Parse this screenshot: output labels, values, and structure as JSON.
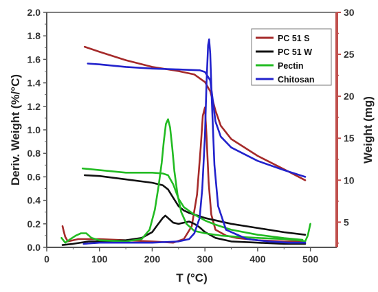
{
  "chart_data": {
    "type": "line",
    "xlabel": "T (°C)",
    "ylabel_left": "Deriv. Weight (%/°C)",
    "ylabel_right": "Weight (mg)",
    "xlim": [
      0,
      550
    ],
    "ylim_left": [
      0.0,
      2.0
    ],
    "ylim_right": [
      2,
      30
    ],
    "x_ticks": [
      0,
      100,
      200,
      300,
      400,
      500
    ],
    "y_left_ticks": [
      0.0,
      0.2,
      0.4,
      0.6,
      0.8,
      1.0,
      1.2,
      1.4,
      1.6,
      1.8,
      2.0
    ],
    "y_left_tick_labels": [
      "0.0",
      "0.2",
      "0.4",
      "0.6",
      "0.8",
      "1.0",
      "1.2",
      "1.4",
      "1.6",
      "1.8",
      "2.0"
    ],
    "y_right_ticks": [
      5,
      10,
      15,
      20,
      25,
      30
    ],
    "y_right_tick_labels": [
      "5",
      "10",
      "15",
      "20",
      "25",
      "30"
    ],
    "right_axis_color": "#c0504d",
    "legend_position": "top-right",
    "grid": false,
    "series": [
      {
        "name": "PC 51 S",
        "color": "#a52a2a",
        "axis": "right",
        "x": [
          72,
          100,
          150,
          200,
          250,
          280,
          300,
          310,
          320,
          330,
          350,
          400,
          450,
          490
        ],
        "y": [
          25.9,
          25.3,
          24.3,
          23.5,
          23.0,
          22.6,
          21.7,
          20.6,
          18.3,
          16.5,
          14.9,
          12.9,
          11.3,
          10.0
        ]
      },
      {
        "name": "PC 51 S",
        "color": "#a52a2a",
        "axis": "left",
        "x": [
          30,
          32,
          35,
          40,
          60,
          80,
          100,
          150,
          200,
          240,
          260,
          275,
          285,
          292,
          296,
          300,
          303,
          307,
          312,
          320,
          340,
          360,
          400,
          450,
          490
        ],
        "y": [
          0.18,
          0.14,
          0.09,
          0.05,
          0.07,
          0.07,
          0.07,
          0.06,
          0.05,
          0.04,
          0.07,
          0.18,
          0.45,
          0.85,
          1.12,
          1.19,
          0.95,
          0.55,
          0.28,
          0.15,
          0.1,
          0.08,
          0.06,
          0.05,
          0.05
        ]
      },
      {
        "name": "PC 51 W",
        "color": "#111111",
        "axis": "right",
        "x": [
          72,
          100,
          150,
          200,
          220,
          230,
          240,
          250,
          260,
          270,
          300,
          350,
          400,
          450,
          490
        ],
        "y": [
          10.6,
          10.5,
          10.1,
          9.7,
          9.4,
          8.9,
          7.9,
          6.9,
          6.4,
          6.1,
          5.5,
          4.8,
          4.3,
          3.8,
          3.5
        ]
      },
      {
        "name": "PC 51 W",
        "color": "#111111",
        "axis": "left",
        "x": [
          30,
          50,
          80,
          100,
          150,
          180,
          200,
          210,
          220,
          225,
          230,
          240,
          250,
          260,
          270,
          280,
          290,
          300,
          320,
          350,
          400,
          450,
          490
        ],
        "y": [
          0.02,
          0.03,
          0.05,
          0.05,
          0.06,
          0.08,
          0.13,
          0.19,
          0.25,
          0.27,
          0.25,
          0.21,
          0.2,
          0.21,
          0.22,
          0.2,
          0.17,
          0.13,
          0.08,
          0.05,
          0.04,
          0.03,
          0.03
        ]
      },
      {
        "name": "Pectin",
        "color": "#22bb22",
        "axis": "right",
        "x": [
          68,
          100,
          150,
          200,
          220,
          230,
          240,
          250,
          260,
          280,
          300,
          320,
          350,
          400,
          450,
          485
        ],
        "y": [
          11.4,
          11.2,
          10.9,
          10.9,
          10.8,
          10.6,
          9.5,
          7.8,
          6.8,
          5.9,
          5.2,
          4.7,
          4.1,
          3.5,
          3.1,
          2.9
        ]
      },
      {
        "name": "Pectin",
        "color": "#22bb22",
        "axis": "left",
        "x": [
          28,
          35,
          45,
          55,
          65,
          75,
          85,
          100,
          150,
          180,
          195,
          205,
          212,
          218,
          222,
          226,
          230,
          234,
          238,
          242,
          248,
          255,
          265,
          280,
          300,
          330,
          360,
          400,
          450,
          480,
          490,
          495,
          500
        ],
        "y": [
          0.08,
          0.04,
          0.07,
          0.1,
          0.12,
          0.12,
          0.08,
          0.06,
          0.05,
          0.07,
          0.15,
          0.32,
          0.52,
          0.72,
          0.9,
          1.05,
          1.09,
          1.02,
          0.85,
          0.65,
          0.45,
          0.3,
          0.2,
          0.14,
          0.12,
          0.1,
          0.09,
          0.08,
          0.07,
          0.06,
          0.05,
          0.1,
          0.2
        ]
      },
      {
        "name": "Chitosan",
        "color": "#2222cc",
        "axis": "right",
        "x": [
          78,
          100,
          150,
          200,
          250,
          290,
          300,
          310,
          315,
          320,
          330,
          350,
          400,
          450,
          490
        ],
        "y": [
          23.9,
          23.8,
          23.5,
          23.3,
          23.2,
          23.1,
          22.9,
          21.9,
          19.5,
          17.0,
          15.2,
          13.9,
          12.3,
          11.2,
          10.4
        ]
      },
      {
        "name": "Chitosan",
        "color": "#2222cc",
        "axis": "left",
        "x": [
          70,
          100,
          150,
          200,
          250,
          270,
          280,
          290,
          295,
          300,
          303,
          306,
          308,
          310,
          313,
          318,
          325,
          340,
          380,
          420,
          460,
          490
        ],
        "y": [
          0.03,
          0.04,
          0.04,
          0.04,
          0.05,
          0.07,
          0.12,
          0.25,
          0.5,
          0.95,
          1.4,
          1.72,
          1.77,
          1.65,
          1.25,
          0.7,
          0.35,
          0.15,
          0.07,
          0.05,
          0.04,
          0.04
        ]
      }
    ]
  },
  "legend": {
    "items": [
      {
        "label": "PC 51 S",
        "color": "#a52a2a"
      },
      {
        "label": "PC 51 W",
        "color": "#111111"
      },
      {
        "label": "Pectin",
        "color": "#22bb22"
      },
      {
        "label": "Chitosan",
        "color": "#2222cc"
      }
    ]
  }
}
